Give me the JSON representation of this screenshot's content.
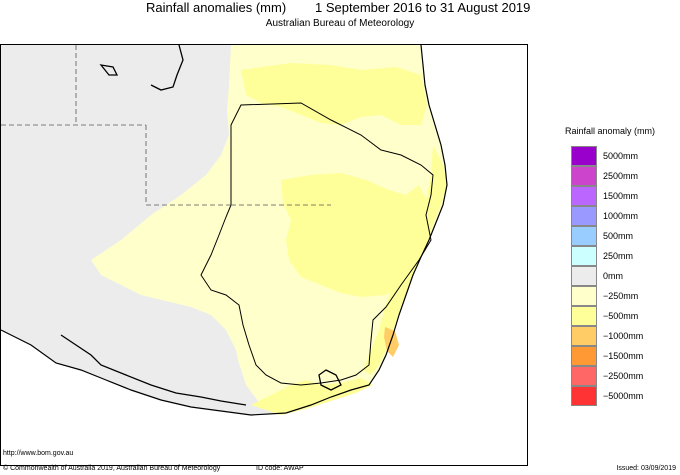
{
  "header": {
    "title_left": "Rainfall anomalies (mm)",
    "title_right": "1 September 2016 to 31 August 2019",
    "subtitle": "Australian Bureau of Meteorology"
  },
  "legend": {
    "title": "Rainfall anomaly (mm)",
    "items": [
      {
        "label": "5000mm",
        "color": "#9a00cc"
      },
      {
        "label": "2500mm",
        "color": "#cc44cc"
      },
      {
        "label": "1500mm",
        "color": "#bb66ff"
      },
      {
        "label": "1000mm",
        "color": "#9999ff"
      },
      {
        "label": "500mm",
        "color": "#99ccff"
      },
      {
        "label": "250mm",
        "color": "#ccffff"
      },
      {
        "label": "0mm",
        "color": "#ececec"
      },
      {
        "label": "−250mm",
        "color": "#ffffcc"
      },
      {
        "label": "−500mm",
        "color": "#ffff99"
      },
      {
        "label": "−1000mm",
        "color": "#ffcc66"
      },
      {
        "label": "−1500mm",
        "color": "#ff9933"
      },
      {
        "label": "−2500mm",
        "color": "#ff6666"
      },
      {
        "label": "−5000mm",
        "color": "#ff3333"
      }
    ]
  },
  "footer": {
    "url": "http://www.bom.gov.au",
    "copyright": "© Commonwealth of Australia 2019, Australian Bureau of Meteorology",
    "id_code": "ID code: AWAP",
    "issued": "Issued: 03/09/2019"
  }
}
